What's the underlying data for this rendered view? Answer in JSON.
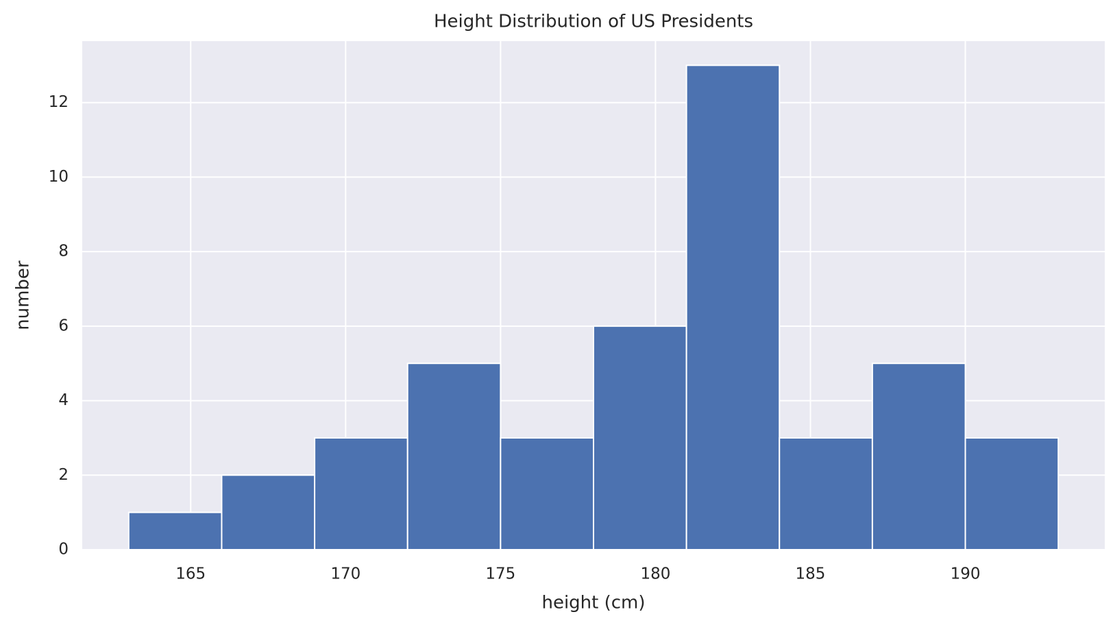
{
  "chart_data": {
    "type": "histogram",
    "title": "Height Distribution of US Presidents",
    "x_label": "height (cm)",
    "y_label": "number",
    "bins": [
      163,
      166,
      169,
      172,
      175,
      178,
      181,
      184,
      187,
      190,
      193
    ],
    "values": [
      1,
      2,
      3,
      5,
      3,
      6,
      13,
      3,
      5,
      3
    ],
    "color": "#4c72b0",
    "xlim": [
      161.5,
      194.5
    ],
    "ylim": [
      0,
      13.65
    ],
    "xticks": [
      165,
      170,
      175,
      180,
      185,
      190
    ],
    "yticks": [
      0,
      2,
      4,
      6,
      8,
      10,
      12
    ],
    "grid": true
  }
}
